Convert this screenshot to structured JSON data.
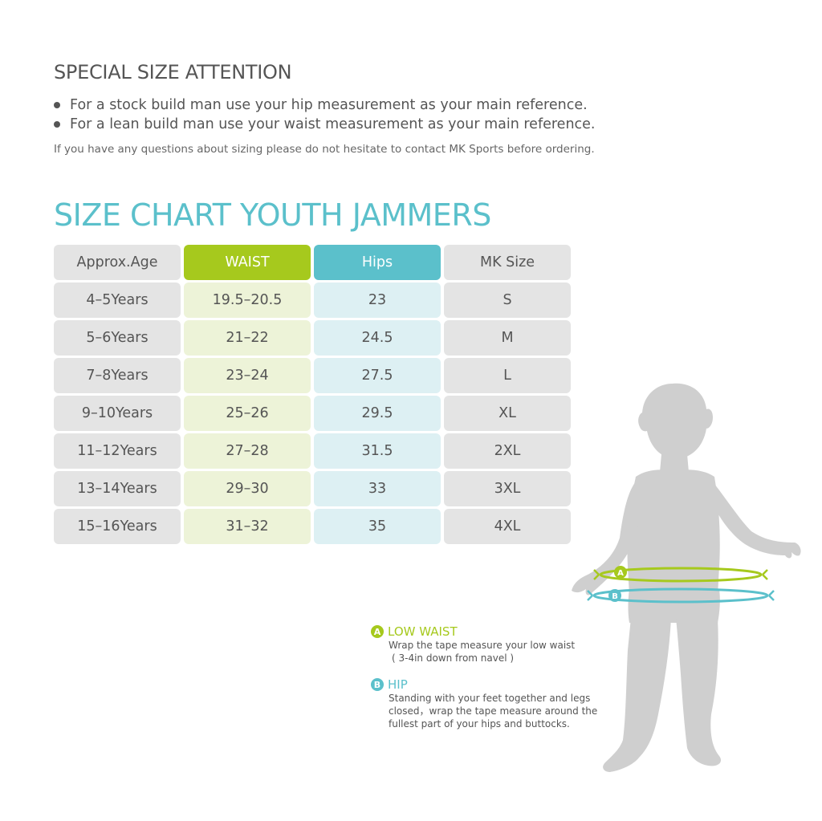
{
  "attention": {
    "title": "SPECIAL SIZE ATTENTION",
    "bullets": [
      "For a stock build man use your hip measurement as your main reference.",
      "For a lean build man use your waist measurement as your main reference."
    ],
    "contact_note": "If you have any questions about sizing please do not hesitate to contact MK Sports before ordering."
  },
  "chart": {
    "title": "SIZE CHART YOUTH JAMMERS",
    "headers": [
      "Approx.Age",
      "WAIST",
      "Hips",
      "MK Size"
    ],
    "rows": [
      [
        "4–5Years",
        "19.5–20.5",
        "23",
        "S"
      ],
      [
        "5–6Years",
        "21–22",
        "24.5",
        "M"
      ],
      [
        "7–8Years",
        "23–24",
        "27.5",
        "L"
      ],
      [
        "9–10Years",
        "25–26",
        "29.5",
        "XL"
      ],
      [
        "11–12Years",
        "27–28",
        "31.5",
        "2XL"
      ],
      [
        "13–14Years",
        "29–30",
        "33",
        "3XL"
      ],
      [
        "15–16Years",
        "31–32",
        "35",
        "4XL"
      ]
    ]
  },
  "legend": {
    "a": {
      "badge": "A",
      "title": "LOW WAIST",
      "lines": [
        "Wrap the tape measure your low waist",
        "( 3-4in down from navel )"
      ]
    },
    "b": {
      "badge": "B",
      "title": "HIP",
      "lines": [
        "Standing with your feet together and legs",
        "closed，wrap the tape measure around the",
        "fullest part of your hips and buttocks."
      ]
    }
  },
  "figure_markers": {
    "a": "A",
    "b": "B"
  },
  "colors": {
    "green": "#a6c91d",
    "teal": "#5bc0cb",
    "gray_cell": "#e4e4e4",
    "text": "#555555"
  }
}
